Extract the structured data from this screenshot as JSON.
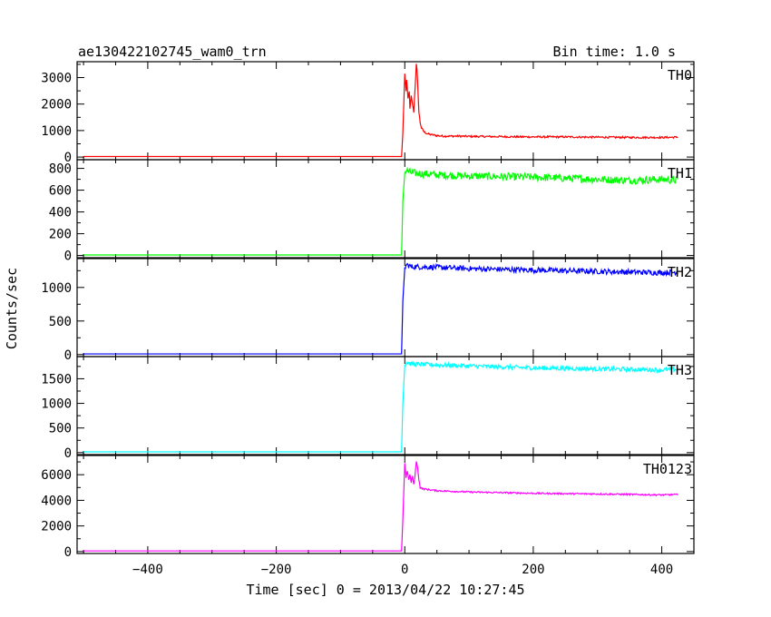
{
  "header": {
    "title": "ae130422102745_wam0_trn",
    "bin_time": "Bin time: 1.0 s"
  },
  "chart_data": {
    "type": "line",
    "xlabel": "Time [sec] 0 = 2013/04/22 10:27:45",
    "ylabel": "Counts/sec",
    "xlim": [
      -510,
      450
    ],
    "x_ticks": [
      -400,
      -200,
      0,
      200,
      400
    ],
    "x_tick_labels": [
      "−400",
      "−200",
      "0",
      "200",
      "400"
    ],
    "grid": false,
    "panels": [
      {
        "name": "TH0",
        "color": "#ff0000",
        "ylim": [
          -100,
          3600
        ],
        "yticks": [
          0,
          1000,
          2000,
          3000
        ],
        "ytick_labels": [
          "0",
          "1000",
          "2000",
          "3000"
        ],
        "x": [
          -500,
          -5,
          -3,
          0,
          2,
          3,
          5,
          7,
          8,
          10,
          12,
          14,
          16,
          18,
          19,
          20,
          22,
          24,
          26,
          30,
          35,
          40,
          50,
          60,
          80,
          100,
          150,
          200,
          250,
          300,
          350,
          400,
          425
        ],
        "y": [
          20,
          20,
          900,
          3150,
          2500,
          2900,
          2200,
          2500,
          1800,
          2300,
          2000,
          1700,
          2600,
          3500,
          3300,
          2800,
          1700,
          1300,
          1100,
          950,
          880,
          850,
          810,
          790,
          790,
          780,
          770,
          760,
          760,
          750,
          740,
          740,
          750
        ],
        "noise": 35
      },
      {
        "name": "TH1",
        "color": "#00ff00",
        "ylim": [
          -20,
          880
        ],
        "yticks": [
          0,
          200,
          400,
          600,
          800
        ],
        "ytick_labels": [
          "0",
          "200",
          "400",
          "600",
          "800"
        ],
        "x": [
          -500,
          -5,
          -3,
          0,
          3,
          10,
          50,
          100,
          200,
          300,
          350,
          400,
          425
        ],
        "y": [
          5,
          5,
          500,
          760,
          780,
          760,
          740,
          730,
          720,
          700,
          690,
          700,
          690
        ],
        "noise": 35
      },
      {
        "name": "TH2",
        "color": "#0000ff",
        "ylim": [
          -30,
          1430
        ],
        "yticks": [
          0,
          500,
          1000
        ],
        "ytick_labels": [
          "0",
          "500",
          "1000"
        ],
        "x": [
          -500,
          -5,
          -3,
          0,
          3,
          10,
          50,
          100,
          200,
          300,
          350,
          400,
          425
        ],
        "y": [
          10,
          10,
          800,
          1290,
          1340,
          1310,
          1300,
          1280,
          1260,
          1240,
          1230,
          1220,
          1230
        ],
        "noise": 40
      },
      {
        "name": "TH3",
        "color": "#00ffff",
        "ylim": [
          -40,
          1950
        ],
        "yticks": [
          0,
          500,
          1000,
          1500
        ],
        "ytick_labels": [
          "0",
          "500",
          "1000",
          "1500"
        ],
        "x": [
          -500,
          -5,
          -3,
          0,
          3,
          10,
          50,
          100,
          200,
          300,
          350,
          400,
          425
        ],
        "y": [
          15,
          15,
          1000,
          1780,
          1830,
          1800,
          1780,
          1760,
          1720,
          1700,
          1690,
          1680,
          1690
        ],
        "noise": 45
      },
      {
        "name": "TH0123",
        "color": "#ff00ff",
        "ylim": [
          -150,
          7500
        ],
        "yticks": [
          0,
          2000,
          4000,
          6000
        ],
        "ytick_labels": [
          "0",
          "2000",
          "4000",
          "6000"
        ],
        "x": [
          -500,
          -5,
          -3,
          0,
          2,
          4,
          6,
          8,
          10,
          12,
          14,
          16,
          18,
          20,
          22,
          24,
          28,
          35,
          50,
          100,
          150,
          200,
          250,
          300,
          350,
          400,
          425
        ],
        "y": [
          50,
          50,
          2500,
          6900,
          5800,
          6300,
          5600,
          6000,
          5400,
          5900,
          5200,
          6000,
          7000,
          6600,
          5600,
          5000,
          4900,
          4850,
          4750,
          4650,
          4600,
          4550,
          4520,
          4500,
          4460,
          4420,
          4450
        ],
        "noise": 60
      }
    ]
  }
}
